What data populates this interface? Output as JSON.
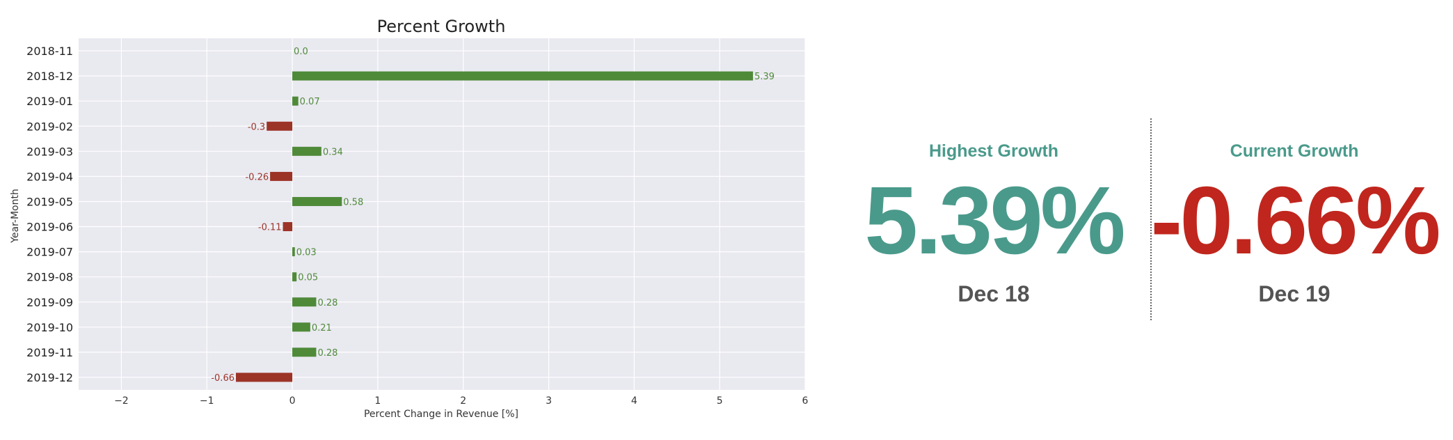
{
  "chart_data": {
    "type": "bar",
    "orientation": "horizontal",
    "title": "Percent Growth",
    "xlabel": "Percent Change in Revenue [%]",
    "ylabel": "Year-Month",
    "xlim": [
      -2.5,
      6
    ],
    "xticks": [
      -2,
      -1,
      0,
      1,
      2,
      3,
      4,
      5,
      6
    ],
    "xtick_labels": [
      "−2",
      "−1",
      "0",
      "1",
      "2",
      "3",
      "4",
      "5",
      "6"
    ],
    "grid": true,
    "categories": [
      "2018-11",
      "2018-12",
      "2019-01",
      "2019-02",
      "2019-03",
      "2019-04",
      "2019-05",
      "2019-06",
      "2019-07",
      "2019-08",
      "2019-09",
      "2019-10",
      "2019-11",
      "2019-12"
    ],
    "values": [
      0.0,
      5.39,
      0.07,
      -0.3,
      0.34,
      -0.26,
      0.58,
      -0.11,
      0.03,
      0.05,
      0.28,
      0.21,
      0.28,
      -0.66
    ],
    "value_labels": [
      "0.0",
      "5.39",
      "0.07",
      "-0.3",
      "0.34",
      "-0.26",
      "0.58",
      "-0.11",
      "0.03",
      "0.05",
      "0.28",
      "0.21",
      "0.28",
      "-0.66"
    ],
    "colors": {
      "positive": "#4f8a39",
      "negative": "#9c3327",
      "background": "#e9e9f0",
      "grid": "#ffffff"
    }
  },
  "stats": {
    "highest": {
      "label": "Highest Growth",
      "value": "5.39%",
      "date": "Dec 18",
      "color": "#4a9a8b"
    },
    "current": {
      "label": "Current Growth",
      "value": "-0.66%",
      "date": "Dec 19",
      "color": "#c0261d"
    }
  }
}
